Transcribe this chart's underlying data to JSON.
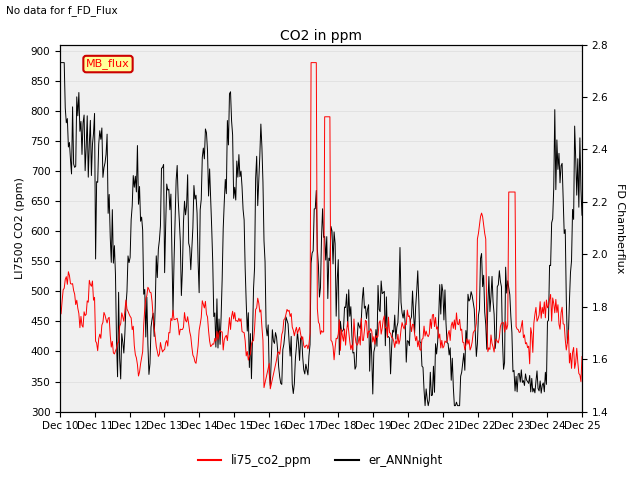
{
  "title": "CO2 in ppm",
  "subtitle": "No data for f_FD_Flux",
  "ylabel_left": "LI7500 CO2 (ppm)",
  "ylabel_right": "FD Chamberflux",
  "ylim_left": [
    300,
    910
  ],
  "ylim_right": [
    1.4,
    2.8
  ],
  "yticks_left": [
    300,
    350,
    400,
    450,
    500,
    550,
    600,
    650,
    700,
    750,
    800,
    850,
    900
  ],
  "yticks_right": [
    1.4,
    1.6,
    1.8,
    2.0,
    2.2,
    2.4,
    2.6,
    2.8
  ],
  "legend_labels": [
    "li75_co2_ppm",
    "er_ANNnight"
  ],
  "legend_colors": [
    "red",
    "black"
  ],
  "mb_flux_box_color": "#ffff99",
  "mb_flux_text_color": "red",
  "mb_flux_border_color": "#cc0000",
  "grid_color": "#e0e0e0",
  "background_color": "white",
  "plot_bg_color": "#f0f0f0",
  "xtick_labels": [
    "Dec 10",
    "Dec 11",
    "Dec 12",
    "Dec 13",
    "Dec 14",
    "Dec 15",
    "Dec 16",
    "Dec 17",
    "Dec 18",
    "Dec 19",
    "Dec 20",
    "Dec 21",
    "Dec 22",
    "Dec 23",
    "Dec 24",
    "Dec 25"
  ]
}
